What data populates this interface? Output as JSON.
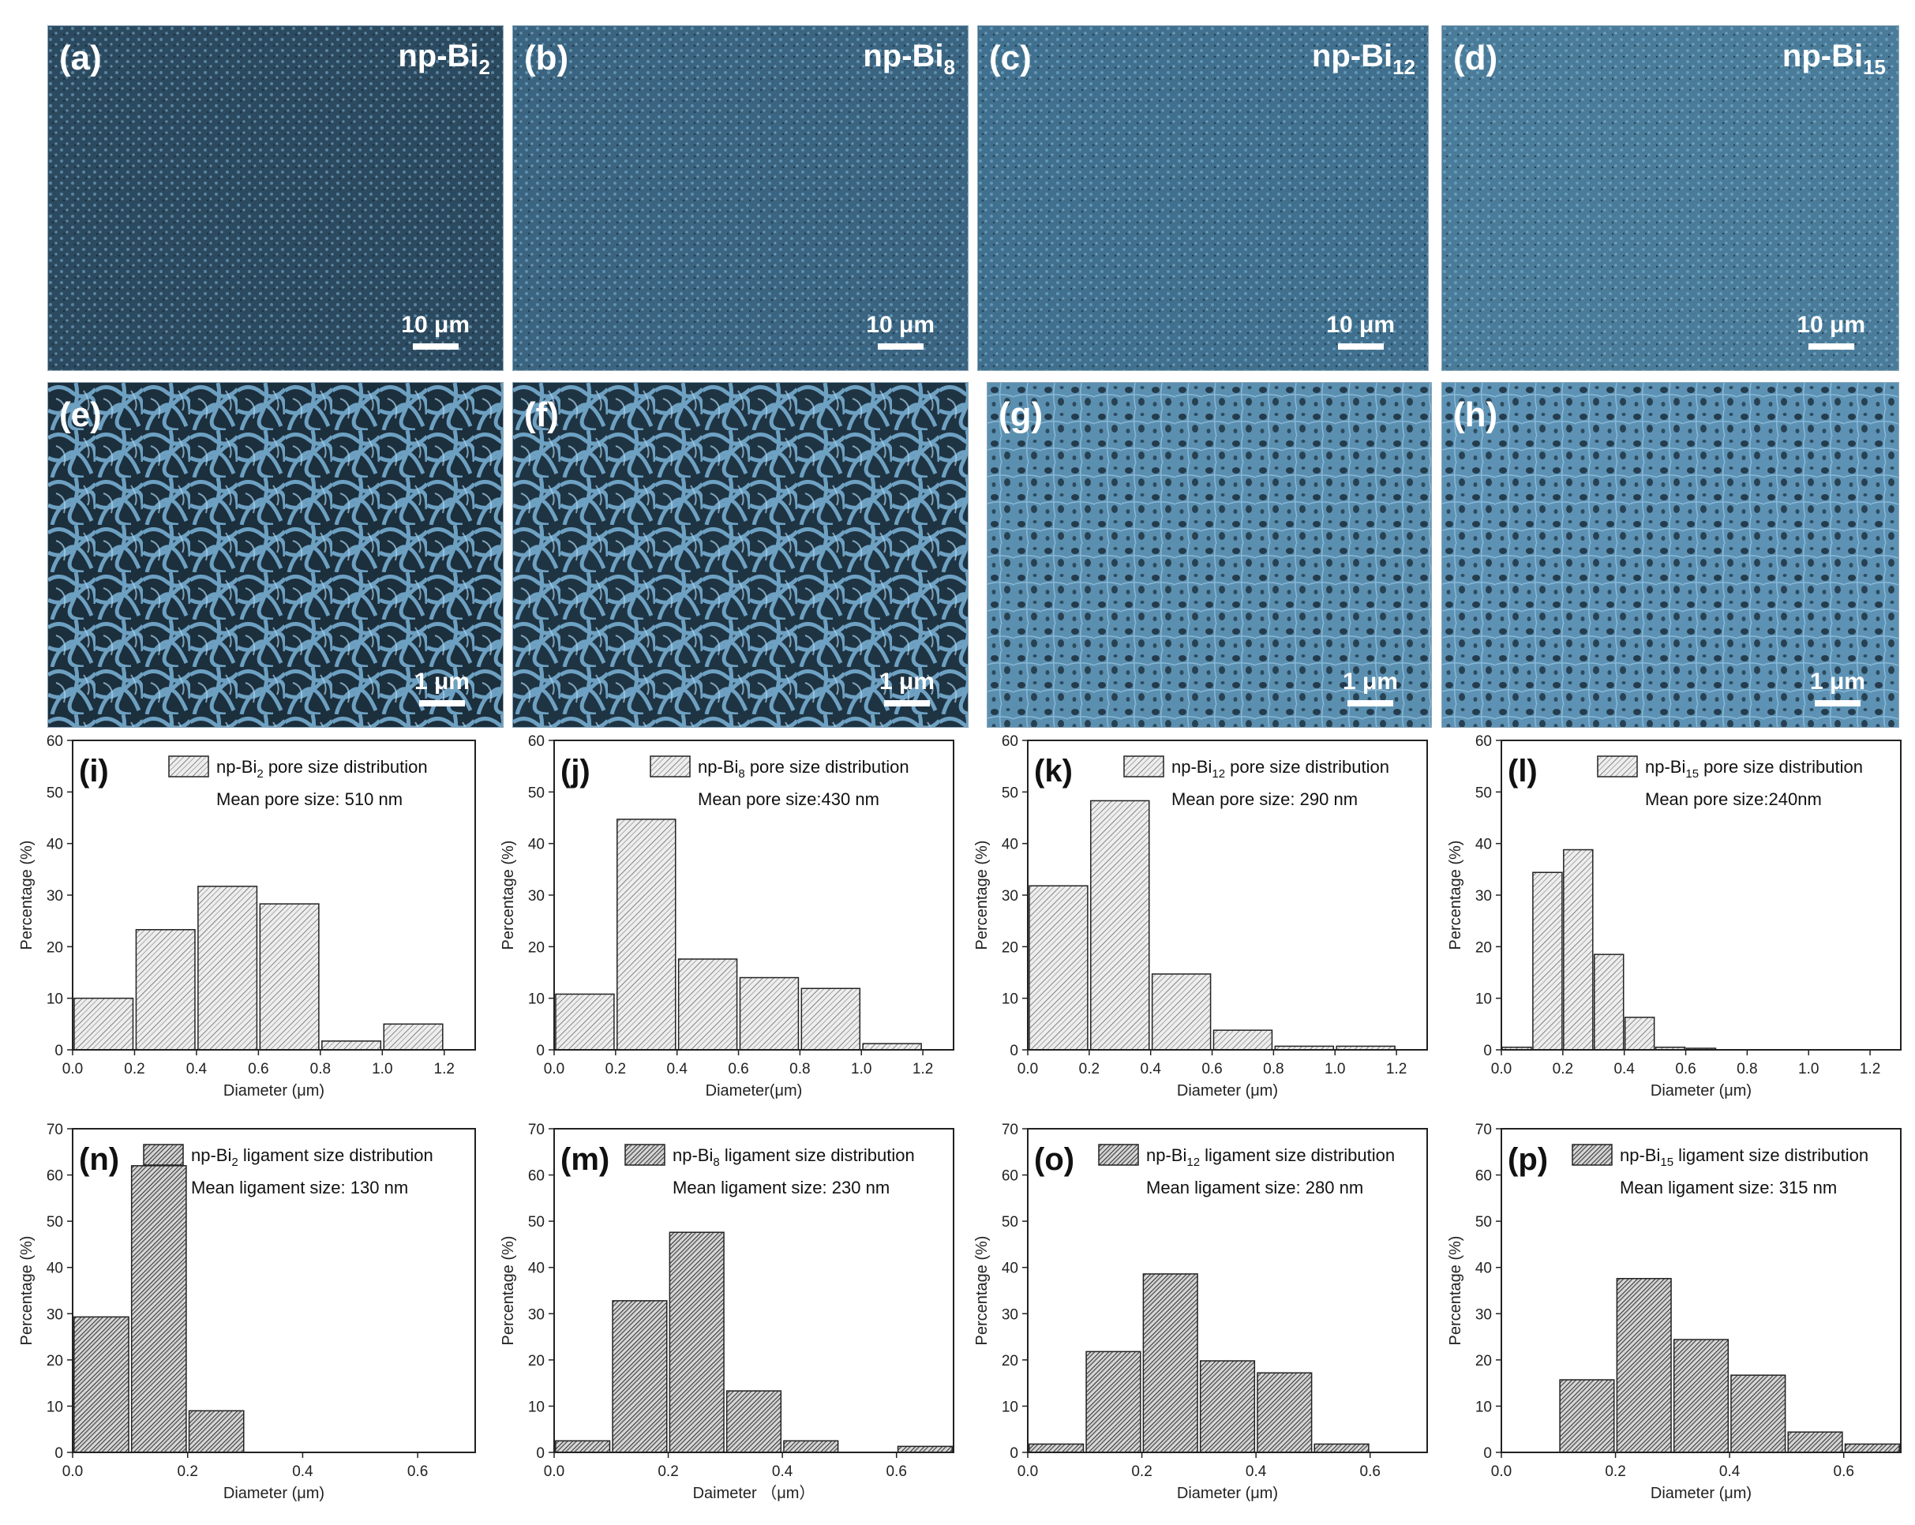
{
  "sem_row_top": [
    {
      "label": "(a)",
      "sample_base": "np-Bi",
      "sample_sub": "2",
      "scale": "10 μm"
    },
    {
      "label": "(b)",
      "sample_base": "np-Bi",
      "sample_sub": "8",
      "scale": "10 μm"
    },
    {
      "label": "(c)",
      "sample_base": "np-Bi",
      "sample_sub": "12",
      "scale": "10 μm"
    },
    {
      "label": "(d)",
      "sample_base": "np-Bi",
      "sample_sub": "15",
      "scale": "10 μm"
    }
  ],
  "sem_row_bottom": [
    {
      "label": "(e)",
      "scale": "1 μm"
    },
    {
      "label": "(f)",
      "scale": "1 μm"
    },
    {
      "label": "(g)",
      "scale": "1 μm"
    },
    {
      "label": "(h)",
      "scale": "1 μm"
    }
  ],
  "colors": {
    "sem_background": "#2c4a5f",
    "sem_ligament": "#7cb4d8",
    "bar_fill_light": "#e8e8e8",
    "bar_fill_dark": "#d4d4d4",
    "hatch": "#555555"
  },
  "chart_data": [
    {
      "type": "bar",
      "panel": "(i)",
      "legend_base": "np-Bi",
      "legend_sub": "2",
      "legend_rest": " pore size distribution",
      "mean": "Mean pore size: 510 nm",
      "xlabel": "Diameter (μm)",
      "ylabel": "Percentage (%)",
      "xlim": [
        0,
        1.3
      ],
      "ylim": [
        0,
        60
      ],
      "xticks": [
        0.0,
        0.2,
        0.4,
        0.6,
        0.8,
        1.0,
        1.2
      ],
      "yticks": [
        0,
        10,
        20,
        30,
        40,
        50,
        60
      ],
      "x": [
        0.1,
        0.3,
        0.5,
        0.7,
        0.9,
        1.1
      ],
      "values": [
        10,
        23.3,
        31.7,
        28.3,
        1.7,
        5
      ],
      "width": 0.19
    },
    {
      "type": "bar",
      "panel": "(j)",
      "legend_base": "np-Bi",
      "legend_sub": "8",
      "legend_rest": " pore size distribution",
      "mean": "Mean pore size:430 nm",
      "xlabel": "Diameter(μm)",
      "ylabel": "Percentage (%)",
      "xlim": [
        0,
        1.3
      ],
      "ylim": [
        0,
        60
      ],
      "xticks": [
        0.0,
        0.2,
        0.4,
        0.6,
        0.8,
        1.0,
        1.2
      ],
      "yticks": [
        0,
        10,
        20,
        30,
        40,
        50,
        60
      ],
      "x": [
        0.1,
        0.3,
        0.5,
        0.7,
        0.9,
        1.1
      ],
      "values": [
        10.8,
        44.7,
        17.6,
        14,
        11.9,
        1.2
      ],
      "width": 0.19
    },
    {
      "type": "bar",
      "panel": "(k)",
      "legend_base": "np-Bi",
      "legend_sub": "12",
      "legend_rest": " pore size distribution",
      "mean": "Mean pore size: 290 nm",
      "xlabel": "Diameter (μm)",
      "ylabel": "Percentage (%)",
      "xlim": [
        0,
        1.3
      ],
      "ylim": [
        0,
        60
      ],
      "xticks": [
        0.0,
        0.2,
        0.4,
        0.6,
        0.8,
        1.0,
        1.2
      ],
      "yticks": [
        0,
        10,
        20,
        30,
        40,
        50,
        60
      ],
      "x": [
        0.1,
        0.3,
        0.5,
        0.7,
        0.9,
        1.1
      ],
      "values": [
        31.8,
        48.3,
        14.7,
        3.8,
        0.7,
        0.7
      ],
      "width": 0.19
    },
    {
      "type": "bar",
      "panel": "(l)",
      "legend_base": "np-Bi",
      "legend_sub": "15",
      "legend_rest": " pore size distribution",
      "mean": "Mean pore size:240nm",
      "xlabel": "Diameter (μm)",
      "ylabel": "Percentage (%)",
      "xlim": [
        0,
        1.3
      ],
      "ylim": [
        0,
        60
      ],
      "xticks": [
        0.0,
        0.2,
        0.4,
        0.6,
        0.8,
        1.0,
        1.2
      ],
      "yticks": [
        0,
        10,
        20,
        30,
        40,
        50,
        60
      ],
      "x": [
        0.05,
        0.15,
        0.25,
        0.35,
        0.45,
        0.55,
        0.65
      ],
      "values": [
        0.5,
        34.4,
        38.8,
        18.5,
        6.3,
        0.5,
        0.3
      ],
      "width": 0.095
    },
    {
      "type": "bar",
      "panel": "(n)",
      "legend_base": "np-Bi",
      "legend_sub": "2",
      "legend_rest": " ligament size distribution",
      "mean": "Mean ligament size: 130 nm",
      "xlabel": "Diameter (μm)",
      "ylabel": "Percentage (%)",
      "xlim": [
        0,
        0.7
      ],
      "ylim": [
        0,
        70
      ],
      "xticks": [
        0.0,
        0.2,
        0.4,
        0.6
      ],
      "yticks": [
        0,
        10,
        20,
        30,
        40,
        50,
        60,
        70
      ],
      "x": [
        0.05,
        0.15,
        0.25
      ],
      "values": [
        29.3,
        62,
        9
      ],
      "width": 0.095
    },
    {
      "type": "bar",
      "panel": "(m)",
      "legend_base": "np-Bi",
      "legend_sub": "8",
      "legend_rest": " ligament size distribution",
      "mean": "Mean ligament size: 230 nm",
      "xlabel": "Daimeter （μm）",
      "ylabel": "Percentage (%)",
      "xlim": [
        0,
        0.7
      ],
      "ylim": [
        0,
        70
      ],
      "xticks": [
        0.0,
        0.2,
        0.4,
        0.6
      ],
      "yticks": [
        0,
        10,
        20,
        30,
        40,
        50,
        60,
        70
      ],
      "x": [
        0.05,
        0.15,
        0.25,
        0.35,
        0.45,
        0.65
      ],
      "values": [
        2.5,
        32.8,
        47.6,
        13.3,
        2.5,
        1.3
      ],
      "width": 0.095
    },
    {
      "type": "bar",
      "panel": "(o)",
      "legend_base": "np-Bi",
      "legend_sub": "12",
      "legend_rest": " ligament size distribution",
      "mean": "Mean ligament size: 280 nm",
      "xlabel": "Diameter (μm)",
      "ylabel": "Percentage (%)",
      "xlim": [
        0,
        0.7
      ],
      "ylim": [
        0,
        70
      ],
      "xticks": [
        0.0,
        0.2,
        0.4,
        0.6
      ],
      "yticks": [
        0,
        10,
        20,
        30,
        40,
        50,
        60,
        70
      ],
      "x": [
        0.05,
        0.15,
        0.25,
        0.35,
        0.45,
        0.55
      ],
      "values": [
        1.8,
        21.8,
        38.6,
        19.8,
        17.2,
        1.8
      ],
      "width": 0.095
    },
    {
      "type": "bar",
      "panel": "(p)",
      "legend_base": "np-Bi",
      "legend_sub": "15",
      "legend_rest": " ligament size distribution",
      "mean": "Mean ligament size: 315 nm",
      "xlabel": "Diameter (μm)",
      "ylabel": "Percentage (%)",
      "xlim": [
        0,
        0.7
      ],
      "ylim": [
        0,
        70
      ],
      "xticks": [
        0.0,
        0.2,
        0.4,
        0.6
      ],
      "yticks": [
        0,
        10,
        20,
        30,
        40,
        50,
        60,
        70
      ],
      "x": [
        0.15,
        0.25,
        0.35,
        0.45,
        0.55,
        0.65
      ],
      "values": [
        15.7,
        37.6,
        24.4,
        16.7,
        4.4,
        1.8
      ],
      "width": 0.095
    }
  ]
}
